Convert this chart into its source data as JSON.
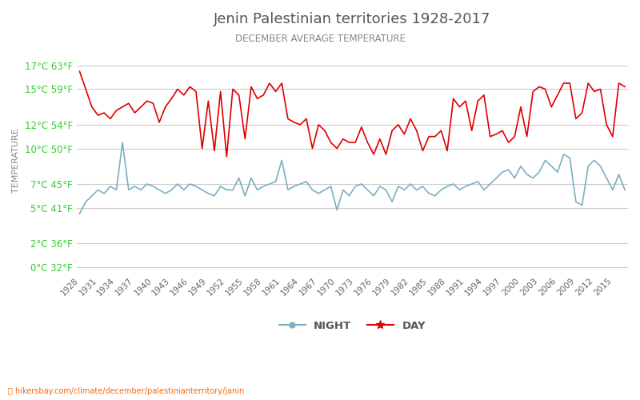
{
  "title": "Jenin Palestinian territories 1928-2017",
  "subtitle": "DECEMBER AVERAGE TEMPERATURE",
  "ylabel": "TEMPERATURE",
  "url_text": "hikersbay.com/climate/december/palestinianterritory/janin",
  "years": [
    1928,
    1929,
    1930,
    1931,
    1932,
    1933,
    1934,
    1935,
    1936,
    1937,
    1938,
    1939,
    1940,
    1941,
    1942,
    1943,
    1944,
    1945,
    1946,
    1947,
    1948,
    1949,
    1950,
    1951,
    1952,
    1953,
    1954,
    1955,
    1956,
    1957,
    1958,
    1959,
    1960,
    1961,
    1962,
    1963,
    1964,
    1965,
    1966,
    1967,
    1968,
    1969,
    1970,
    1971,
    1972,
    1973,
    1974,
    1975,
    1976,
    1977,
    1978,
    1979,
    1980,
    1981,
    1982,
    1983,
    1984,
    1985,
    1986,
    1987,
    1988,
    1989,
    1990,
    1991,
    1992,
    1993,
    1994,
    1995,
    1996,
    1997,
    1998,
    1999,
    2000,
    2001,
    2002,
    2003,
    2004,
    2005,
    2006,
    2007,
    2008,
    2009,
    2010,
    2011,
    2012,
    2013,
    2014,
    2015,
    2016,
    2017
  ],
  "day_temps": [
    16.5,
    15.0,
    13.5,
    12.8,
    13.0,
    12.5,
    13.2,
    13.5,
    13.8,
    13.0,
    13.5,
    14.0,
    13.8,
    12.2,
    13.5,
    14.2,
    15.0,
    14.5,
    15.2,
    14.8,
    10.0,
    14.0,
    9.8,
    14.8,
    9.3,
    15.0,
    14.5,
    10.8,
    15.2,
    14.2,
    14.5,
    15.5,
    14.8,
    15.5,
    12.5,
    12.2,
    12.0,
    12.5,
    10.0,
    12.0,
    11.5,
    10.5,
    10.0,
    10.8,
    10.5,
    10.5,
    11.8,
    10.5,
    9.5,
    10.8,
    9.5,
    11.5,
    12.0,
    11.2,
    12.5,
    11.5,
    9.8,
    11.0,
    11.0,
    11.5,
    9.8,
    14.2,
    13.5,
    14.0,
    11.5,
    14.0,
    14.5,
    11.0,
    11.2,
    11.5,
    10.5,
    11.0,
    13.5,
    11.0,
    14.8,
    15.2,
    15.0,
    13.5,
    14.5,
    15.5,
    15.5,
    12.5,
    13.0,
    15.5,
    14.8,
    15.0,
    12.0,
    11.0,
    15.5,
    15.2
  ],
  "night_temps": [
    4.5,
    5.5,
    6.0,
    6.5,
    6.2,
    6.8,
    6.5,
    10.5,
    6.5,
    6.8,
    6.5,
    7.0,
    6.8,
    6.5,
    6.2,
    6.5,
    7.0,
    6.5,
    7.0,
    6.8,
    6.5,
    6.2,
    6.0,
    6.8,
    6.5,
    6.5,
    7.5,
    6.0,
    7.5,
    6.5,
    6.8,
    7.0,
    7.2,
    9.0,
    6.5,
    6.8,
    7.0,
    7.2,
    6.5,
    6.2,
    6.5,
    6.8,
    4.8,
    6.5,
    6.0,
    6.8,
    7.0,
    6.5,
    6.0,
    6.8,
    6.5,
    5.5,
    6.8,
    6.5,
    7.0,
    6.5,
    6.8,
    6.2,
    6.0,
    6.5,
    6.8,
    7.0,
    6.5,
    6.8,
    7.0,
    7.2,
    6.5,
    7.0,
    7.5,
    8.0,
    8.2,
    7.5,
    8.5,
    7.8,
    7.5,
    8.0,
    9.0,
    8.5,
    8.0,
    9.5,
    9.2,
    5.5,
    5.2,
    8.5,
    9.0,
    8.5,
    7.5,
    6.5,
    7.8,
    6.5
  ],
  "title_color": "#555555",
  "subtitle_color": "#888888",
  "day_color": "#dd0000",
  "night_color": "#7ab0c0",
  "grid_color": "#cccccc",
  "ytick_celsius_color": "#33cc33",
  "xtick_color": "#666666",
  "ylabel_color": "#888888",
  "url_color": "#ff6600",
  "url_icon_color": "#ffcc00",
  "background_color": "#ffffff",
  "y_celsius": [
    0,
    2,
    5,
    7,
    10,
    12,
    15,
    17
  ],
  "y_fahrenheit": [
    32,
    36,
    41,
    45,
    50,
    54,
    59,
    63
  ],
  "ylim": [
    -0.5,
    18.5
  ],
  "legend_night_label": "NIGHT",
  "legend_day_label": "DAY"
}
